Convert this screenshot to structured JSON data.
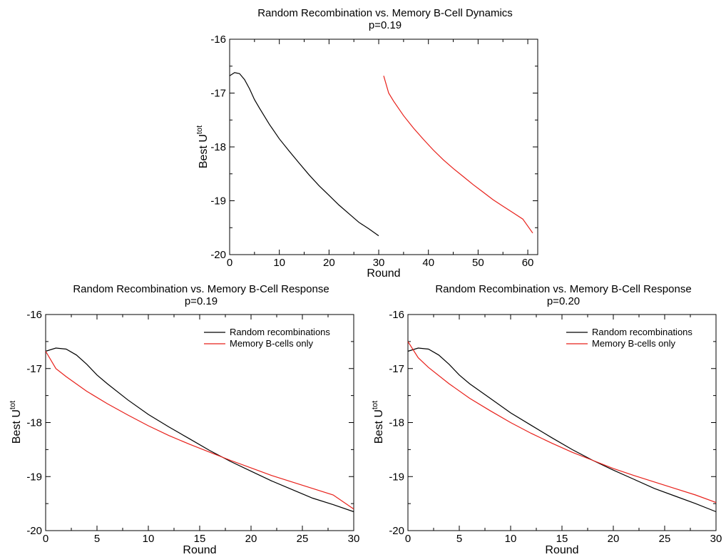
{
  "chart_data": [
    {
      "type": "line",
      "title": "Random Recombination vs. Memory B-Cell Dynamics",
      "subtitle": "p=0.19",
      "xlabel": "Round",
      "ylabel": {
        "base": "Best U",
        "sup": "tot"
      },
      "xlim": [
        0,
        62
      ],
      "ylim": [
        -20,
        -16
      ],
      "xticks": [
        "0",
        "10",
        "20",
        "30",
        "40",
        "50",
        "60"
      ],
      "yticks": [
        "-20",
        "-19",
        "-18",
        "-17",
        "-16"
      ],
      "xtick_values": [
        0,
        10,
        20,
        30,
        40,
        50,
        60
      ],
      "ytick_values": [
        -20,
        -19,
        -18,
        -17,
        -16
      ],
      "legend": null,
      "series": [
        {
          "color": "#000000",
          "x": [
            0,
            1,
            2,
            3,
            4,
            5,
            6,
            8,
            10,
            12,
            14,
            16,
            18,
            20,
            22,
            24,
            26,
            28,
            30
          ],
          "y": [
            -16.68,
            -16.62,
            -16.64,
            -16.75,
            -16.92,
            -17.12,
            -17.28,
            -17.58,
            -17.85,
            -18.08,
            -18.3,
            -18.52,
            -18.72,
            -18.9,
            -19.08,
            -19.24,
            -19.4,
            -19.52,
            -19.65
          ]
        },
        {
          "color": "#e8201a",
          "x": [
            31,
            32,
            33,
            35,
            37,
            39,
            41,
            43,
            45,
            47,
            49,
            51,
            53,
            55,
            57,
            59,
            61
          ],
          "y": [
            -16.68,
            -17.0,
            -17.15,
            -17.42,
            -17.65,
            -17.86,
            -18.06,
            -18.24,
            -18.4,
            -18.55,
            -18.7,
            -18.84,
            -18.98,
            -19.1,
            -19.22,
            -19.34,
            -19.6
          ]
        }
      ]
    },
    {
      "type": "line",
      "title": "Random Recombination vs. Memory B-Cell Response",
      "subtitle": "p=0.19",
      "xlabel": "Round",
      "ylabel": {
        "base": "Best U",
        "sup": "tot"
      },
      "xlim": [
        0,
        30
      ],
      "ylim": [
        -20,
        -16
      ],
      "xticks": [
        "0",
        "5",
        "10",
        "15",
        "20",
        "25",
        "30"
      ],
      "yticks": [
        "-20",
        "-19",
        "-18",
        "-17",
        "-16"
      ],
      "xtick_values": [
        0,
        5,
        10,
        15,
        20,
        25,
        30
      ],
      "ytick_values": [
        -20,
        -19,
        -18,
        -17,
        -16
      ],
      "legend": "top-right",
      "series": [
        {
          "name": "Random recombinations",
          "color": "#000000",
          "x": [
            0,
            1,
            2,
            3,
            4,
            5,
            6,
            8,
            10,
            12,
            14,
            16,
            18,
            20,
            22,
            24,
            26,
            28,
            30
          ],
          "y": [
            -16.68,
            -16.62,
            -16.64,
            -16.75,
            -16.92,
            -17.12,
            -17.28,
            -17.58,
            -17.85,
            -18.08,
            -18.3,
            -18.52,
            -18.72,
            -18.9,
            -19.08,
            -19.24,
            -19.4,
            -19.52,
            -19.65
          ]
        },
        {
          "name": "Memory B-cells only",
          "color": "#e8201a",
          "x": [
            0,
            1,
            2,
            4,
            6,
            8,
            10,
            12,
            14,
            16,
            18,
            20,
            22,
            24,
            26,
            28,
            30
          ],
          "y": [
            -16.68,
            -17.0,
            -17.15,
            -17.42,
            -17.65,
            -17.86,
            -18.06,
            -18.24,
            -18.4,
            -18.55,
            -18.7,
            -18.84,
            -18.98,
            -19.1,
            -19.22,
            -19.34,
            -19.6
          ]
        }
      ]
    },
    {
      "type": "line",
      "title": "Random Recombination vs. Memory B-Cell Response",
      "subtitle": "p=0.20",
      "xlabel": "Round",
      "ylabel": {
        "base": "Best U",
        "sup": "tot"
      },
      "xlim": [
        0,
        30
      ],
      "ylim": [
        -20,
        -16
      ],
      "xticks": [
        "0",
        "5",
        "10",
        "15",
        "20",
        "25",
        "30"
      ],
      "yticks": [
        "-20",
        "-19",
        "-18",
        "-17",
        "-16"
      ],
      "xtick_values": [
        0,
        5,
        10,
        15,
        20,
        25,
        30
      ],
      "ytick_values": [
        -20,
        -19,
        -18,
        -17,
        -16
      ],
      "legend": "top-right",
      "series": [
        {
          "name": "Random recombinations",
          "color": "#000000",
          "x": [
            0,
            1,
            2,
            3,
            4,
            5,
            6,
            8,
            10,
            12,
            14,
            16,
            18,
            20,
            22,
            24,
            26,
            28,
            30
          ],
          "y": [
            -16.68,
            -16.62,
            -16.64,
            -16.75,
            -16.92,
            -17.12,
            -17.28,
            -17.55,
            -17.82,
            -18.05,
            -18.28,
            -18.5,
            -18.7,
            -18.88,
            -19.05,
            -19.22,
            -19.36,
            -19.5,
            -19.65
          ]
        },
        {
          "name": "Memory B-cells only",
          "color": "#e8201a",
          "x": [
            0,
            1,
            2,
            4,
            6,
            8,
            10,
            12,
            14,
            16,
            18,
            20,
            22,
            24,
            26,
            28,
            30
          ],
          "y": [
            -16.5,
            -16.8,
            -16.98,
            -17.28,
            -17.55,
            -17.78,
            -18.0,
            -18.2,
            -18.38,
            -18.55,
            -18.7,
            -18.85,
            -18.98,
            -19.1,
            -19.22,
            -19.34,
            -19.48
          ]
        }
      ]
    }
  ]
}
